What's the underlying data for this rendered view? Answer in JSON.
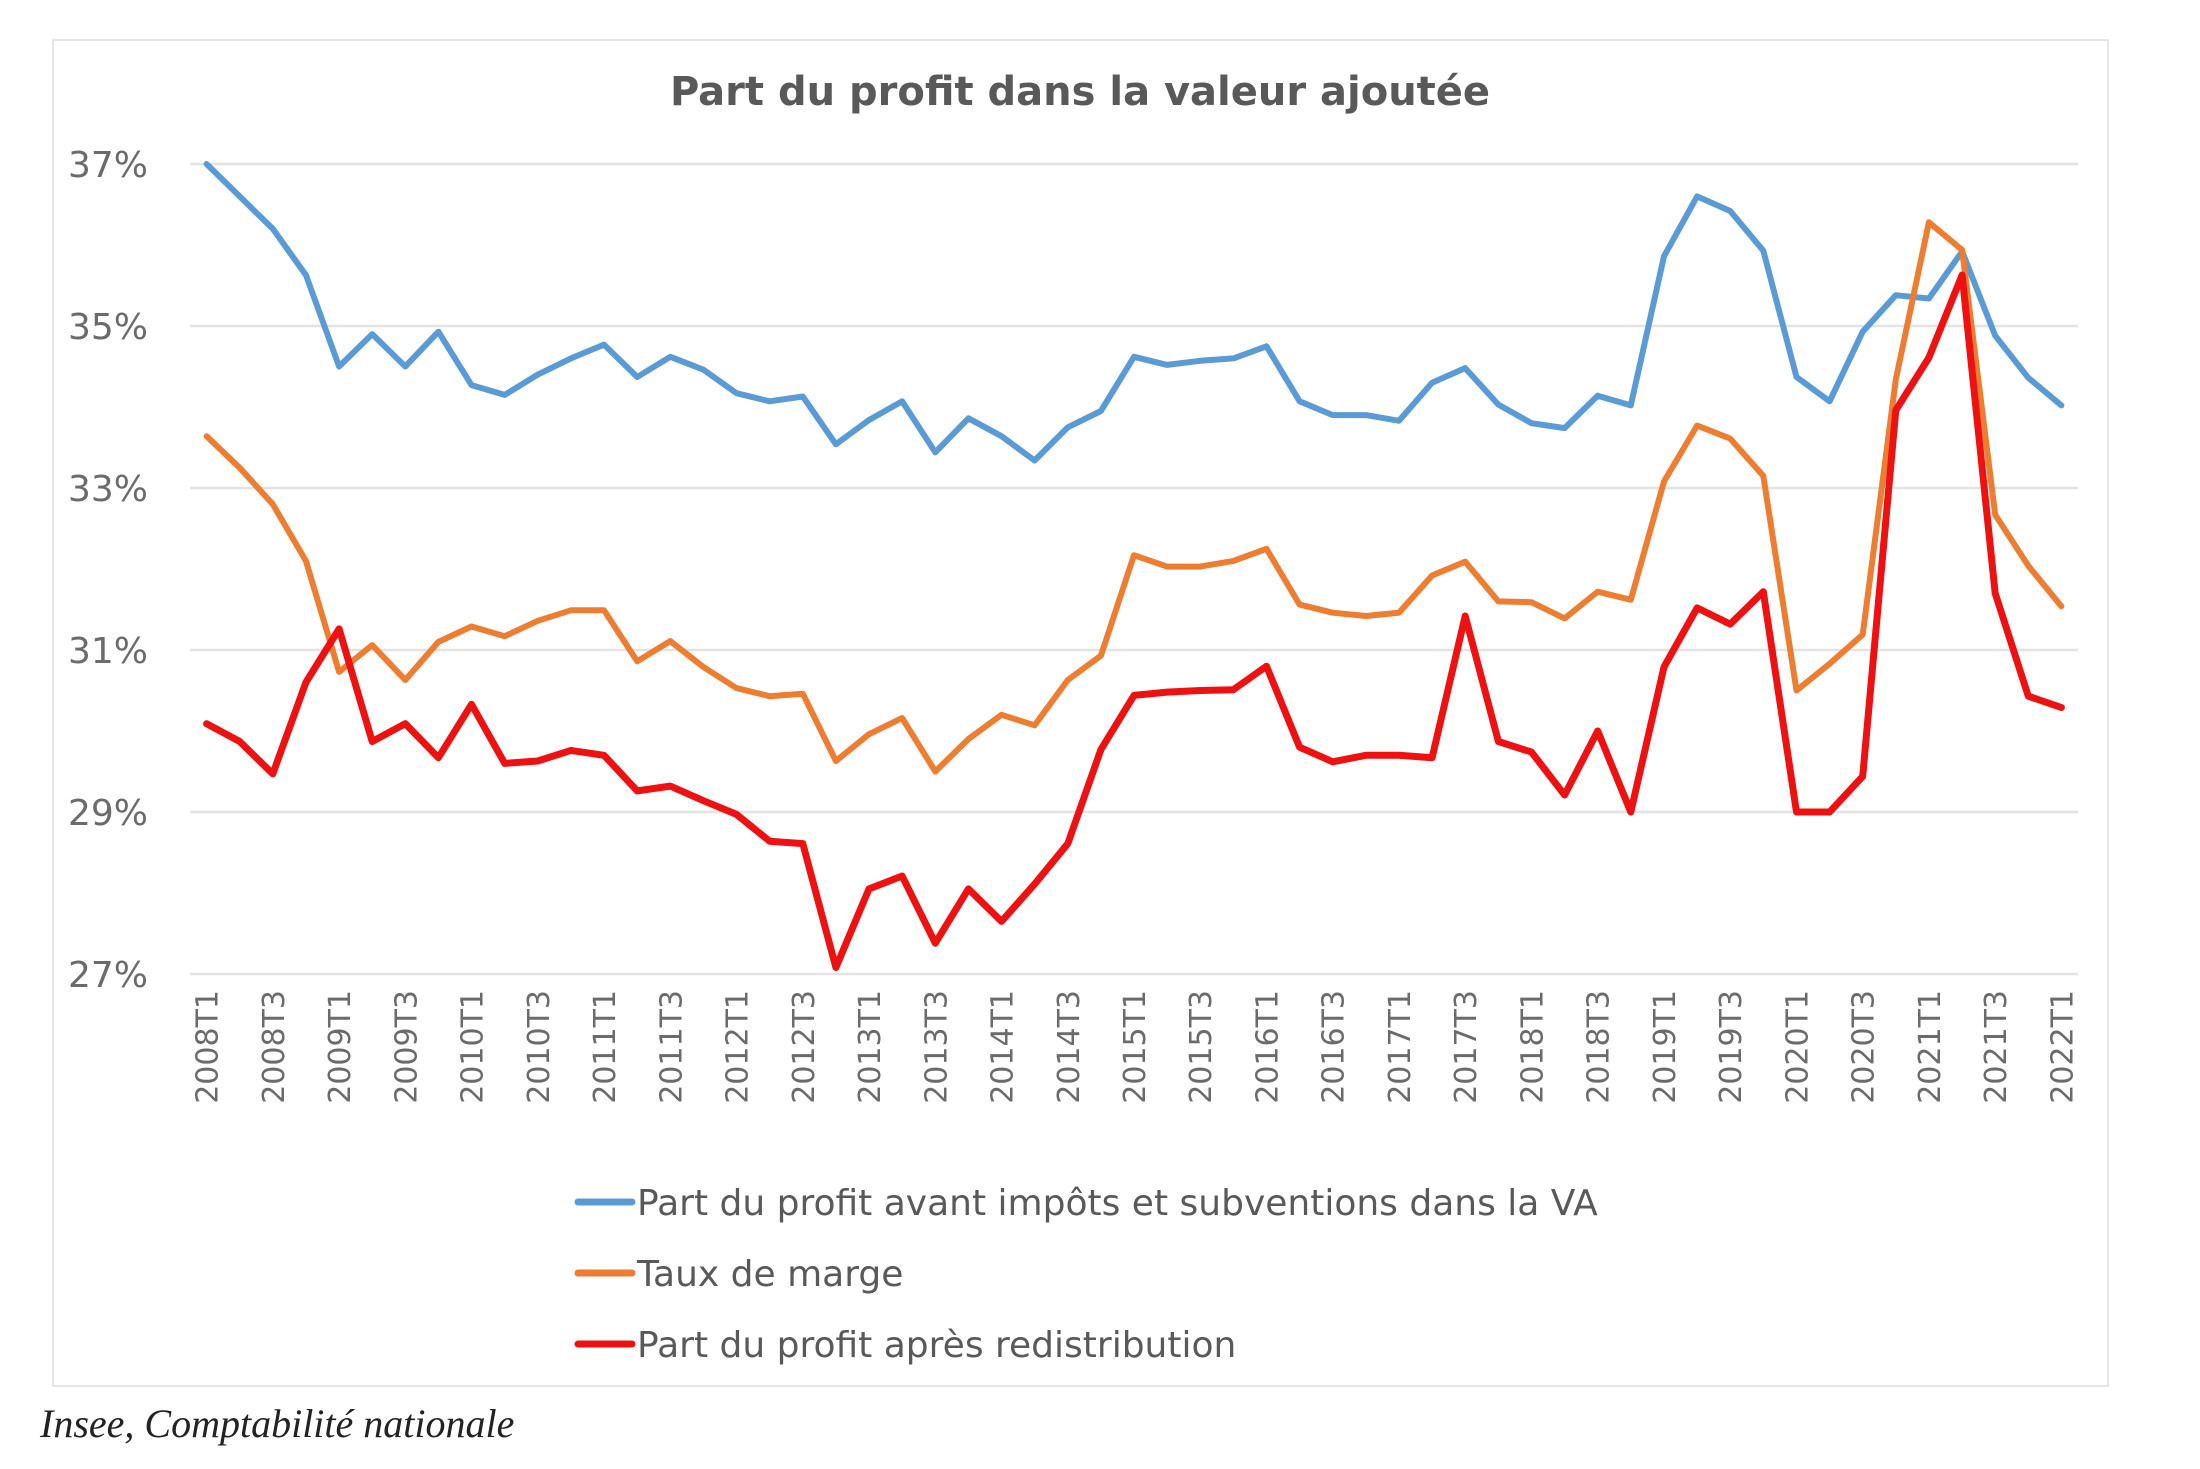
{
  "chart_data": {
    "type": "line",
    "title": "Part du profit dans la valeur ajoutée",
    "xlabel": "",
    "ylabel": "",
    "ylim": [
      27,
      37
    ],
    "yticks": [
      27,
      29,
      31,
      33,
      35,
      37
    ],
    "ytick_labels": [
      "27%",
      "29%",
      "31%",
      "33%",
      "35%",
      "37%"
    ],
    "grid": true,
    "legend_position": "bottom",
    "x": [
      "2008T1",
      "2008T2",
      "2008T3",
      "2008T4",
      "2009T1",
      "2009T2",
      "2009T3",
      "2009T4",
      "2010T1",
      "2010T2",
      "2010T3",
      "2010T4",
      "2011T1",
      "2011T2",
      "2011T3",
      "2011T4",
      "2012T1",
      "2012T2",
      "2012T3",
      "2012T4",
      "2013T1",
      "2013T2",
      "2013T3",
      "2013T4",
      "2014T1",
      "2014T2",
      "2014T3",
      "2014T4",
      "2015T1",
      "2015T2",
      "2015T3",
      "2015T4",
      "2016T1",
      "2016T2",
      "2016T3",
      "2016T4",
      "2017T1",
      "2017T2",
      "2017T3",
      "2017T4",
      "2018T1",
      "2018T2",
      "2018T3",
      "2018T4",
      "2019T1",
      "2019T2",
      "2019T3",
      "2019T4",
      "2020T1",
      "2020T2",
      "2020T3",
      "2020T4",
      "2021T1",
      "2021T2",
      "2021T3",
      "2021T4",
      "2022T1"
    ],
    "xtick_labels": [
      "2008T1",
      "2008T3",
      "2009T1",
      "2009T3",
      "2010T1",
      "2010T3",
      "2011T1",
      "2011T3",
      "2012T1",
      "2012T3",
      "2013T1",
      "2013T3",
      "2014T1",
      "2014T3",
      "2015T1",
      "2015T3",
      "2016T1",
      "2016T3",
      "2017T1",
      "2017T3",
      "2018T1",
      "2018T3",
      "2019T1",
      "2019T3",
      "2020T1",
      "2020T3",
      "2021T1",
      "2021T3",
      "2022T1"
    ],
    "series": [
      {
        "name": "Part du profit avant impôts et subventions dans la VA",
        "color": "#5b9bd5",
        "values": [
          37.0,
          36.6,
          36.2,
          35.63,
          34.5,
          34.9,
          34.5,
          34.93,
          34.27,
          34.15,
          34.4,
          34.6,
          34.77,
          34.37,
          34.62,
          34.46,
          34.17,
          34.07,
          34.13,
          33.54,
          33.84,
          34.07,
          33.44,
          33.86,
          33.64,
          33.34,
          33.75,
          33.95,
          34.62,
          34.52,
          34.57,
          34.6,
          34.75,
          34.07,
          33.9,
          33.9,
          33.83,
          34.3,
          34.48,
          34.03,
          33.8,
          33.74,
          34.14,
          34.02,
          35.86,
          36.6,
          36.42,
          35.93,
          34.37,
          34.07,
          34.93,
          35.38,
          35.34,
          35.92,
          34.88,
          34.36,
          34.02
        ]
      },
      {
        "name": "Taux de marge",
        "color": "#ed7d31",
        "values": [
          33.64,
          33.25,
          32.8,
          32.1,
          30.73,
          31.06,
          30.63,
          31.1,
          31.29,
          31.17,
          31.36,
          31.49,
          31.49,
          30.86,
          31.11,
          30.79,
          30.53,
          30.43,
          30.46,
          29.63,
          29.96,
          30.16,
          29.5,
          29.9,
          30.2,
          30.07,
          30.63,
          30.93,
          32.17,
          32.03,
          32.03,
          32.1,
          32.25,
          31.56,
          31.46,
          31.42,
          31.46,
          31.92,
          32.09,
          31.6,
          31.59,
          31.39,
          31.72,
          31.62,
          33.08,
          33.77,
          33.61,
          33.15,
          30.5,
          30.83,
          31.19,
          34.34,
          36.28,
          35.94,
          32.67,
          32.04,
          31.54
        ]
      },
      {
        "name": "Part du profit après redistribution",
        "color": "#ee1111",
        "values": [
          30.09,
          29.87,
          29.47,
          30.6,
          31.26,
          29.87,
          30.09,
          29.67,
          30.33,
          29.6,
          29.63,
          29.76,
          29.7,
          29.26,
          29.32,
          29.14,
          28.97,
          28.64,
          28.61,
          27.08,
          28.05,
          28.21,
          27.38,
          28.05,
          27.65,
          28.11,
          28.61,
          29.77,
          30.44,
          30.48,
          30.5,
          30.51,
          30.8,
          29.8,
          29.62,
          29.7,
          29.7,
          29.67,
          31.42,
          29.87,
          29.74,
          29.21,
          30.0,
          29.0,
          30.79,
          31.52,
          31.32,
          31.72,
          29.0,
          29.0,
          29.44,
          33.96,
          34.61,
          35.63,
          31.7,
          30.43,
          30.29
        ]
      }
    ]
  },
  "source": "Insee, Comptabilité nationale"
}
